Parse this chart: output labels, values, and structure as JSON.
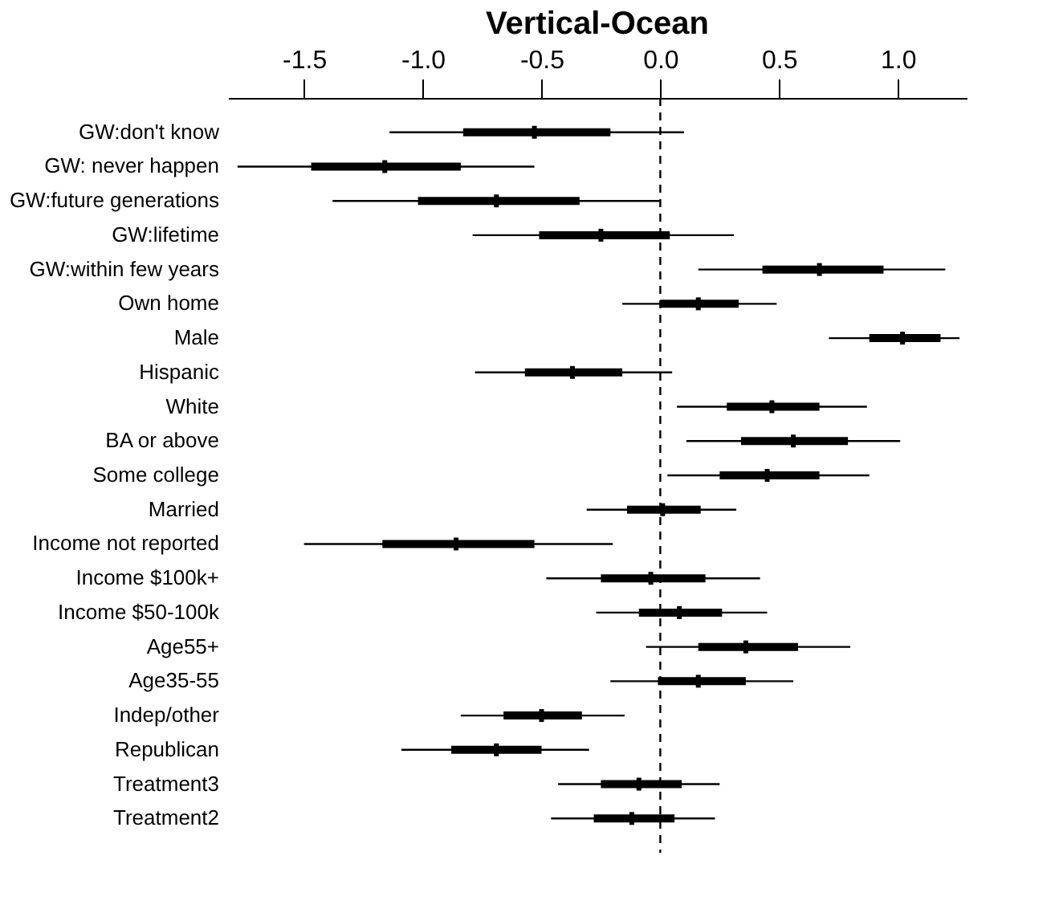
{
  "chart_data": {
    "type": "box",
    "title": "Vertical-Ocean",
    "orientation": "horizontal",
    "categories": [
      "GW:don't know",
      "GW: never happen",
      "GW:future generations",
      "GW:lifetime",
      "GW:within few years",
      "Own home",
      "Male",
      "Hispanic",
      "White",
      "BA or above",
      "Some college",
      "Married",
      "Income not reported",
      "Income $100k+",
      "Income $50-100k",
      "Age55+",
      "Age35-55",
      "Indep/other",
      "Republican",
      "Treatment3",
      "Treatment2"
    ],
    "series": [
      {
        "color": "#000000",
        "boxes": [
          {
            "low": -1.14,
            "q1": -0.83,
            "median": -0.53,
            "q3": -0.21,
            "high": 0.1
          },
          {
            "low": -1.78,
            "q1": -1.47,
            "median": -1.16,
            "q3": -0.84,
            "high": -0.53
          },
          {
            "low": -1.38,
            "q1": -1.02,
            "median": -0.69,
            "q3": -0.34,
            "high": 0.0
          },
          {
            "low": -0.79,
            "q1": -0.51,
            "median": -0.25,
            "q3": 0.04,
            "high": 0.31
          },
          {
            "low": 0.16,
            "q1": 0.43,
            "median": 0.67,
            "q3": 0.94,
            "high": 1.2
          },
          {
            "low": -0.16,
            "q1": 0.0,
            "median": 0.16,
            "q3": 0.33,
            "high": 0.49
          },
          {
            "low": 0.71,
            "q1": 0.88,
            "median": 1.02,
            "q3": 1.18,
            "high": 1.26
          },
          {
            "low": -0.78,
            "q1": -0.57,
            "median": -0.37,
            "q3": -0.16,
            "high": 0.05
          },
          {
            "low": 0.07,
            "q1": 0.28,
            "median": 0.47,
            "q3": 0.67,
            "high": 0.87
          },
          {
            "low": 0.11,
            "q1": 0.34,
            "median": 0.56,
            "q3": 0.79,
            "high": 1.01
          },
          {
            "low": 0.03,
            "q1": 0.25,
            "median": 0.45,
            "q3": 0.67,
            "high": 0.88
          },
          {
            "low": -0.31,
            "q1": -0.14,
            "median": 0.01,
            "q3": 0.17,
            "high": 0.32
          },
          {
            "low": -1.5,
            "q1": -1.17,
            "median": -0.86,
            "q3": -0.53,
            "high": -0.2
          },
          {
            "low": -0.48,
            "q1": -0.25,
            "median": -0.04,
            "q3": 0.19,
            "high": 0.42
          },
          {
            "low": -0.27,
            "q1": -0.09,
            "median": 0.08,
            "q3": 0.26,
            "high": 0.45
          },
          {
            "low": -0.06,
            "q1": 0.16,
            "median": 0.36,
            "q3": 0.58,
            "high": 0.8
          },
          {
            "low": -0.21,
            "q1": -0.01,
            "median": 0.16,
            "q3": 0.36,
            "high": 0.56
          },
          {
            "low": -0.84,
            "q1": -0.66,
            "median": -0.5,
            "q3": -0.33,
            "high": -0.15
          },
          {
            "low": -1.09,
            "q1": -0.88,
            "median": -0.69,
            "q3": -0.5,
            "high": -0.3
          },
          {
            "low": -0.43,
            "q1": -0.25,
            "median": -0.09,
            "q3": 0.09,
            "high": 0.25
          },
          {
            "low": -0.46,
            "q1": -0.28,
            "median": -0.12,
            "q3": 0.06,
            "high": 0.23
          }
        ]
      }
    ],
    "xlim": [
      -1.82,
      1.29
    ],
    "xticks": [
      {
        "value": -1.5,
        "label": "-1.5"
      },
      {
        "value": -1.0,
        "label": "-1.0"
      },
      {
        "value": -0.5,
        "label": "-0.5"
      },
      {
        "value": 0.0,
        "label": "0.0"
      },
      {
        "value": 0.5,
        "label": "0.5"
      },
      {
        "value": 1.0,
        "label": "1.0"
      }
    ],
    "ref_lines": [
      {
        "axis": "x",
        "value": 0,
        "line_style": "dashed",
        "color": "#000000"
      }
    ],
    "grid": false
  }
}
